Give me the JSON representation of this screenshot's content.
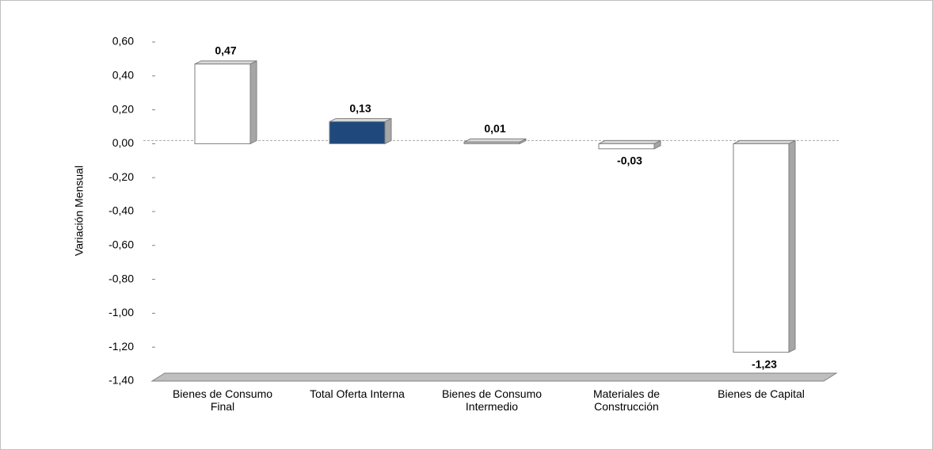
{
  "chart_data": {
    "type": "bar",
    "y_label": "Variación Mensual",
    "categories": [
      "Bienes de Consumo Final",
      "Total Oferta Interna",
      "Bienes de Consumo Intermedio",
      "Materiales de Construcción",
      "Bienes de Capital"
    ],
    "values": [
      0.47,
      0.13,
      0.01,
      -0.03,
      -1.23
    ],
    "value_labels": [
      "0,47",
      "0,13",
      "0,01",
      "-0,03",
      "-1,23"
    ],
    "colors": [
      "#ffffff",
      "#1f497d",
      "#bfbfbf",
      "#ffffff",
      "#ffffff"
    ],
    "ylim": [
      -1.4,
      0.6
    ],
    "yticks": [
      {
        "value": 0.6,
        "label": "0,60"
      },
      {
        "value": 0.4,
        "label": "0,40"
      },
      {
        "value": 0.2,
        "label": "0,20"
      },
      {
        "value": 0,
        "label": "0,00"
      },
      {
        "value": -0.2,
        "label": "-0,20"
      },
      {
        "value": -0.4,
        "label": "-0,40"
      },
      {
        "value": -0.6,
        "label": "-0,60"
      },
      {
        "value": -0.8,
        "label": "-0,80"
      },
      {
        "value": -1.0,
        "label": "-1,00"
      },
      {
        "value": -1.2,
        "label": "-1,20"
      },
      {
        "value": -1.4,
        "label": "-1,40"
      }
    ]
  }
}
